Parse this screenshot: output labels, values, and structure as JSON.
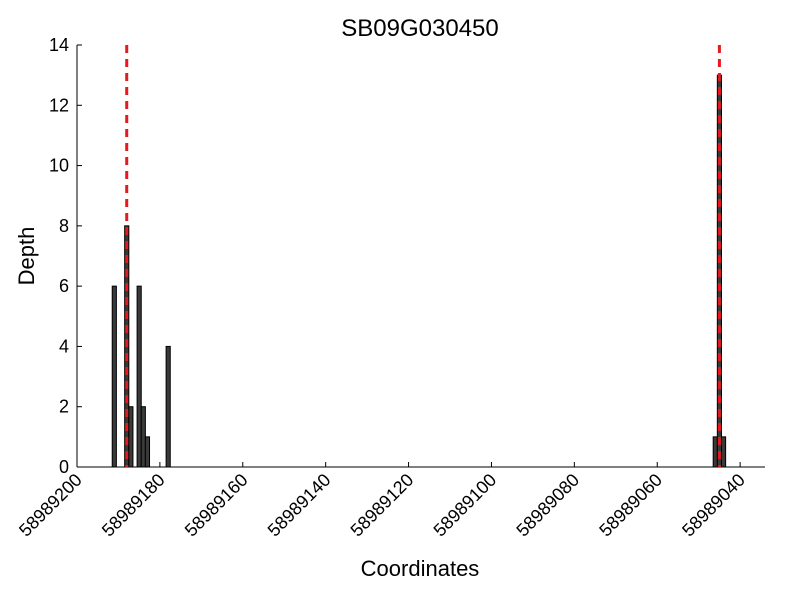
{
  "chart_data": {
    "type": "bar",
    "title": "SB09G030450",
    "xlabel": "Coordinates",
    "ylabel": "Depth",
    "x": [
      58989191,
      58989188,
      58989187,
      58989185,
      58989184,
      58989183,
      58989178,
      58989046,
      58989045,
      58989044
    ],
    "values": [
      6,
      8,
      2,
      6,
      2,
      1,
      4,
      1,
      13,
      1
    ],
    "color": "#3a3a3a",
    "xlim": [
      58989200,
      58989034
    ],
    "xticks": [
      58989200,
      58989180,
      58989160,
      58989140,
      58989120,
      58989100,
      58989080,
      58989060,
      58989040
    ],
    "ylim": [
      0,
      14
    ],
    "yticks": [
      0,
      2,
      4,
      6,
      8,
      10,
      12,
      14
    ],
    "vlines": [
      58989188,
      58989045
    ],
    "vline_color": "#e41a1c"
  }
}
